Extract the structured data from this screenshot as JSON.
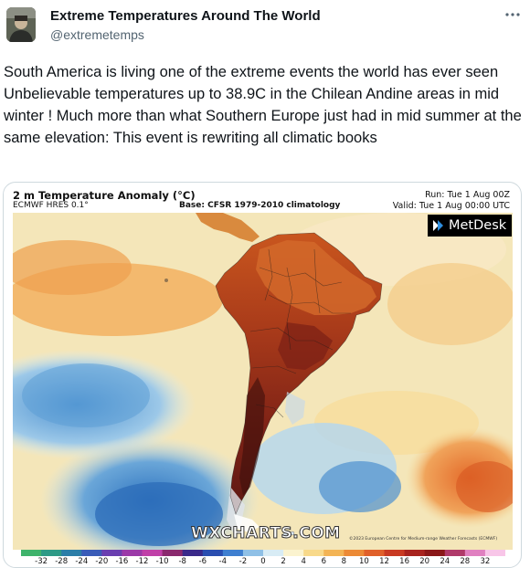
{
  "post": {
    "author_name": "Extreme Temperatures Around The World",
    "author_handle": "@extremetemps",
    "more_icon": "ellipsis-icon",
    "text_lines": [
      "South America is living one of the extreme events the world has ever seen",
      "Unbelievable temperatures up to 38.9C in the Chilean Andine areas in mid winter ! Much more than what Southern Europe just had in mid summer at the same elevation: This event is rewriting all climatic books"
    ]
  },
  "map": {
    "title": "2 m Temperature Anomaly (°C)",
    "model": "ECMWF HRES 0.1°",
    "base": "Base: CFSR 1979-2010 climatology",
    "run": "Run: Tue 1 Aug 00Z",
    "valid": "Valid: Tue 1 Aug 00:00 UTC",
    "brand": "MetDesk",
    "watermark": "WXCHARTS.COM",
    "copyright": "©2023 European Centre for Medium-range Weather Forecasts (ECMWF)",
    "scale_ticks": [
      "-32",
      "-28",
      "-24",
      "-20",
      "-16",
      "-12",
      "-10",
      "-8",
      "-6",
      "-4",
      "-2",
      "0",
      "2",
      "4",
      "6",
      "8",
      "10",
      "12",
      "16",
      "20",
      "24",
      "28",
      "32"
    ],
    "scale_colors": [
      "#3fb36b",
      "#2e9a86",
      "#2c7ea8",
      "#3a5cb8",
      "#6a3fb0",
      "#9b3aa8",
      "#c040a8",
      "#8a2a6e",
      "#3a2a8a",
      "#2a4eb0",
      "#3f7fd0",
      "#8fc0e6",
      "#d8ecf5",
      "#fbf3cf",
      "#f8d98a",
      "#f3b455",
      "#ec8a36",
      "#e0602a",
      "#c93a22",
      "#a8231e",
      "#8a1818",
      "#b03a6a",
      "#e080c0",
      "#f8c6e8"
    ],
    "ocean_color": "#f1e6b9",
    "warm_color": "#e58a3e",
    "hot_color": "#8a2a1a",
    "cold_color": "#3d88c8"
  }
}
